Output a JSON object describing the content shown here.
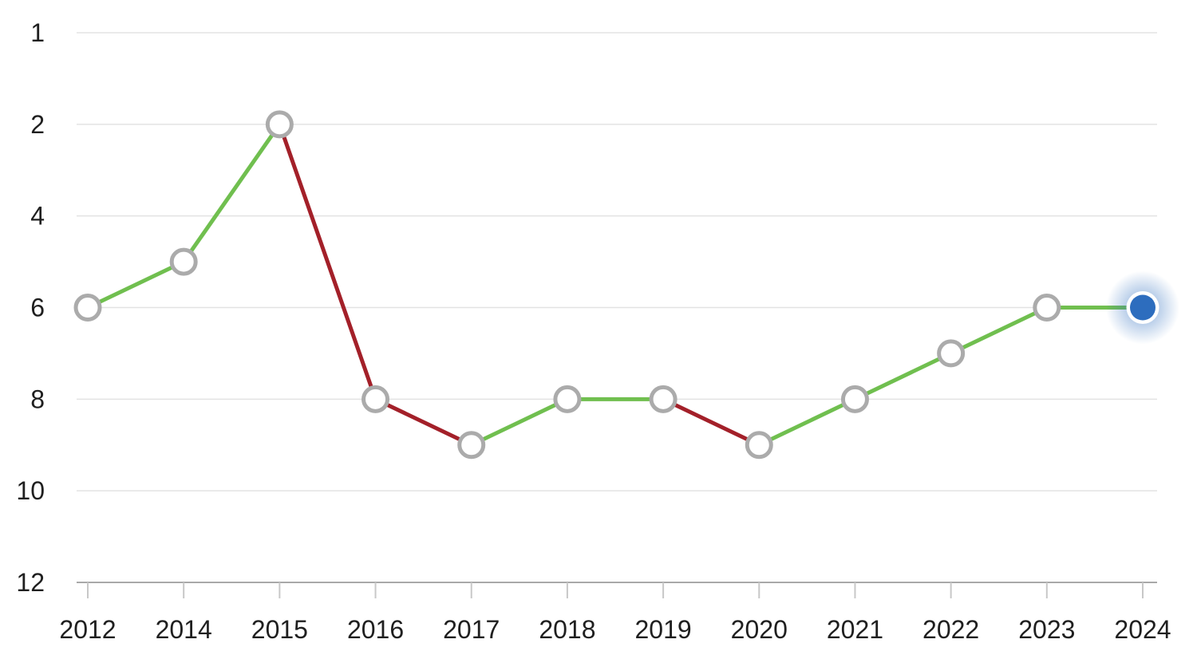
{
  "page": {
    "background": "#ffffff"
  },
  "chart_data": {
    "type": "line",
    "title": "",
    "xlabel": "",
    "ylabel": "",
    "legend": "none",
    "grid": true,
    "y_axis_reversed": true,
    "x_labels": [
      "2012",
      "2014",
      "2015",
      "2016",
      "2017",
      "2018",
      "2019",
      "2020",
      "2021",
      "2022",
      "2023",
      "2024"
    ],
    "values": [
      6,
      5,
      2,
      8,
      9,
      8,
      8,
      9,
      8,
      7,
      6,
      6
    ],
    "y_tick_labels": [
      "1",
      "2",
      "4",
      "6",
      "8",
      "10",
      "12"
    ],
    "y_tick_values": [
      1,
      2,
      4,
      6,
      8,
      10,
      12
    ],
    "segment_trend": [
      "improve",
      "improve",
      "decline",
      "decline",
      "improve",
      "flat",
      "decline",
      "improve",
      "improve",
      "improve",
      "flat"
    ],
    "current_point_index": 11,
    "current_point_value": 6,
    "current_point_year": "2024"
  },
  "colors": {
    "improve_green": "#70bf4f",
    "decline_red": "#a32029",
    "current_blue": "#2d6dbe",
    "marker_stroke": "#ababab",
    "marker_fill": "#ffffff",
    "grid_line": "#e3e3e3",
    "axis_line": "#a9a9a9",
    "tick_mark": "#c8c8c8",
    "label_text": "#1f1f1f"
  }
}
